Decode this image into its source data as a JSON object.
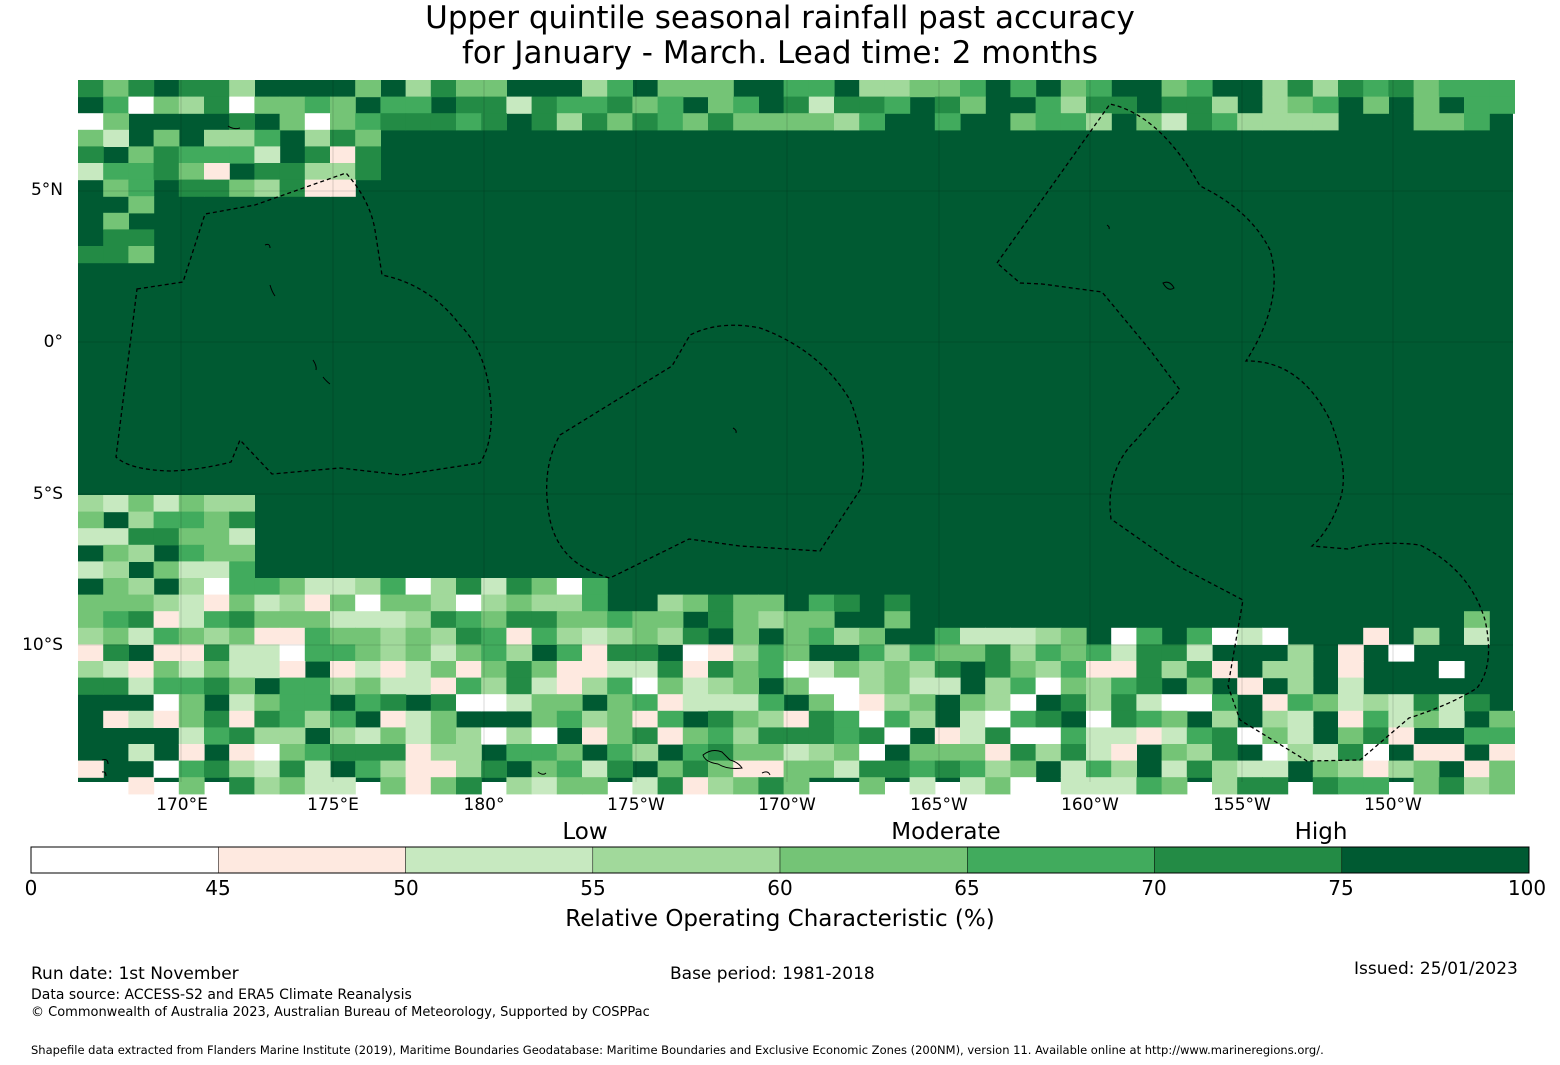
{
  "title": {
    "line1": "Upper quintile seasonal rainfall past accuracy",
    "line2": "for January - March. Lead time: 2 months"
  },
  "map": {
    "lat_labels": [
      "5°N",
      "0°",
      "5°S",
      "10°S"
    ],
    "lon_labels": [
      "170°E",
      "175°E",
      "180°",
      "175°W",
      "170°W",
      "165°W",
      "160°W",
      "155°W",
      "150°W"
    ],
    "lon_range": [
      166.6,
      213.6
    ],
    "lat_range": [
      -14.5,
      8.7
    ],
    "colors": {
      "c0": "#ffffff",
      "c1": "#fee9e0",
      "c2": "#c7e9c0",
      "c3": "#a1d99b",
      "c4": "#74c476",
      "c5": "#41ab5d",
      "c6": "#238b45",
      "c7": "#005a32"
    }
  },
  "colorbar": {
    "categories": [
      "Low",
      "Moderate",
      "High"
    ],
    "ticks": [
      "0",
      "45",
      "50",
      "55",
      "60",
      "65",
      "70",
      "75",
      "100"
    ],
    "bounds": [
      0,
      45,
      50,
      55,
      60,
      65,
      70,
      75,
      100
    ],
    "label": "Relative Operating Characteristic (%)"
  },
  "footer": {
    "run_date": "Run date: 1st November",
    "base_period": "Base period: 1981-2018",
    "issued": "Issued: 25/01/2023",
    "data_source": "Data source: ACCESS-S2 and ERA5 Climate Reanalysis",
    "copyright": "© Commonwealth of Australia 2023, Australian Bureau of Meteorology, Supported by COSPPac",
    "shapefile": "Shapefile data extracted from Flanders Marine Institute (2019), Maritime Boundaries Geodatabase: Maritime Boundaries and Exclusive Economic Zones (200NM), version 11. Available online at http://www.marineregions.org/."
  }
}
